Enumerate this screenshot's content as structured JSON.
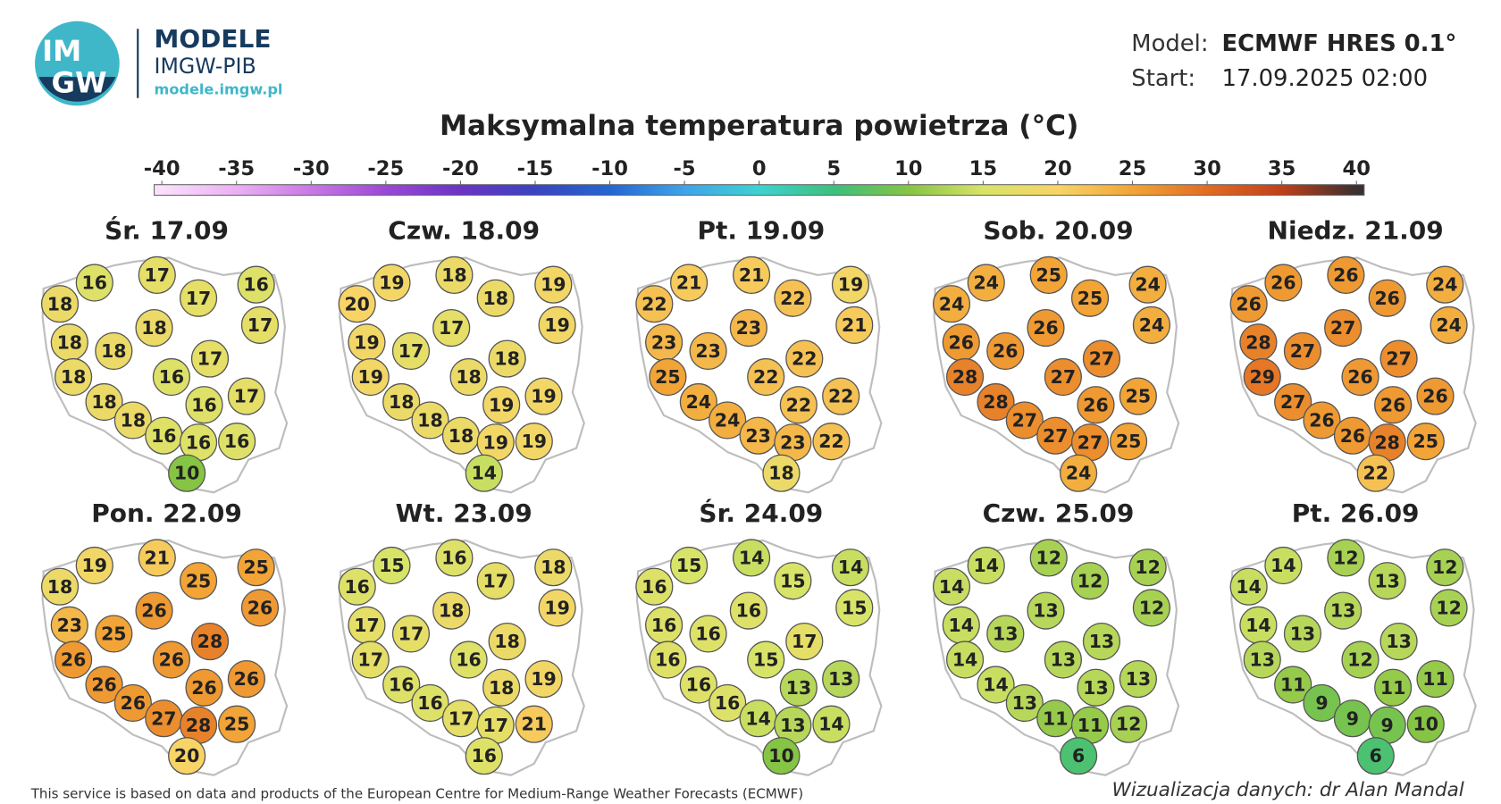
{
  "header": {
    "logo_text": [
      "IM",
      "GW"
    ],
    "brand": "MODELE",
    "org": "IMGW-PIB",
    "url": "modele.imgw.pl",
    "model_label": "Model:",
    "model": "ECMWF HRES 0.1°",
    "start_label": "Start:",
    "start": "17.09.2025 02:00"
  },
  "title": "Maksymalna temperatura powietrza (°C)",
  "colorbar": {
    "ticks": [
      -40,
      -35,
      -30,
      -25,
      -20,
      -15,
      -10,
      -5,
      0,
      5,
      10,
      15,
      20,
      25,
      30,
      35,
      40
    ],
    "colors": [
      "#fbe0fb",
      "#eab0f2",
      "#c878e4",
      "#9a48d6",
      "#6a34c4",
      "#3a44c0",
      "#2466d2",
      "#3ea4ea",
      "#3ed2d0",
      "#3cc07c",
      "#86c444",
      "#d8e468",
      "#f8d466",
      "#f2a436",
      "#e26c22",
      "#c0401a",
      "#3a3030"
    ]
  },
  "maps": [
    {
      "date": "Śr. 17.09",
      "values": [
        18,
        16,
        17,
        17,
        16,
        17,
        18,
        18,
        18,
        17,
        18,
        16,
        18,
        16,
        17,
        18,
        16,
        16,
        16,
        10
      ]
    },
    {
      "date": "Czw. 18.09",
      "values": [
        20,
        19,
        18,
        18,
        19,
        19,
        19,
        17,
        17,
        18,
        19,
        18,
        18,
        19,
        19,
        18,
        18,
        19,
        19,
        14
      ]
    },
    {
      "date": "Pt. 19.09",
      "values": [
        22,
        21,
        21,
        22,
        19,
        21,
        23,
        23,
        23,
        22,
        25,
        22,
        24,
        22,
        22,
        24,
        23,
        23,
        22,
        18
      ]
    },
    {
      "date": "Sob. 20.09",
      "values": [
        24,
        24,
        25,
        25,
        24,
        24,
        26,
        26,
        26,
        27,
        28,
        27,
        28,
        26,
        25,
        27,
        27,
        27,
        25,
        24
      ]
    },
    {
      "date": "Niedz. 21.09",
      "values": [
        26,
        26,
        26,
        26,
        24,
        24,
        28,
        27,
        27,
        27,
        29,
        26,
        27,
        26,
        26,
        26,
        26,
        28,
        25,
        22
      ]
    },
    {
      "date": "Pon. 22.09",
      "values": [
        18,
        19,
        21,
        25,
        25,
        26,
        23,
        25,
        26,
        28,
        26,
        26,
        26,
        26,
        26,
        26,
        27,
        28,
        25,
        20
      ]
    },
    {
      "date": "Wt. 23.09",
      "values": [
        16,
        15,
        16,
        17,
        18,
        19,
        17,
        17,
        18,
        18,
        17,
        16,
        16,
        18,
        19,
        16,
        17,
        17,
        21,
        16
      ]
    },
    {
      "date": "Śr. 24.09",
      "values": [
        16,
        15,
        14,
        15,
        14,
        15,
        16,
        16,
        16,
        17,
        16,
        15,
        16,
        13,
        13,
        16,
        14,
        13,
        14,
        10
      ]
    },
    {
      "date": "Czw. 25.09",
      "values": [
        14,
        14,
        12,
        12,
        12,
        12,
        14,
        13,
        13,
        13,
        14,
        13,
        14,
        13,
        13,
        13,
        11,
        11,
        12,
        6
      ]
    },
    {
      "date": "Pt. 26.09",
      "values": [
        14,
        14,
        12,
        13,
        12,
        12,
        14,
        13,
        13,
        13,
        13,
        12,
        11,
        11,
        11,
        9,
        9,
        9,
        10,
        6
      ]
    }
  ],
  "footer": {
    "source": "This service is based on data and products of the European Centre for Medium-Range Weather Forecasts (ECMWF)",
    "credit": "Wizualizacja danych: dr Alan Mandal"
  }
}
